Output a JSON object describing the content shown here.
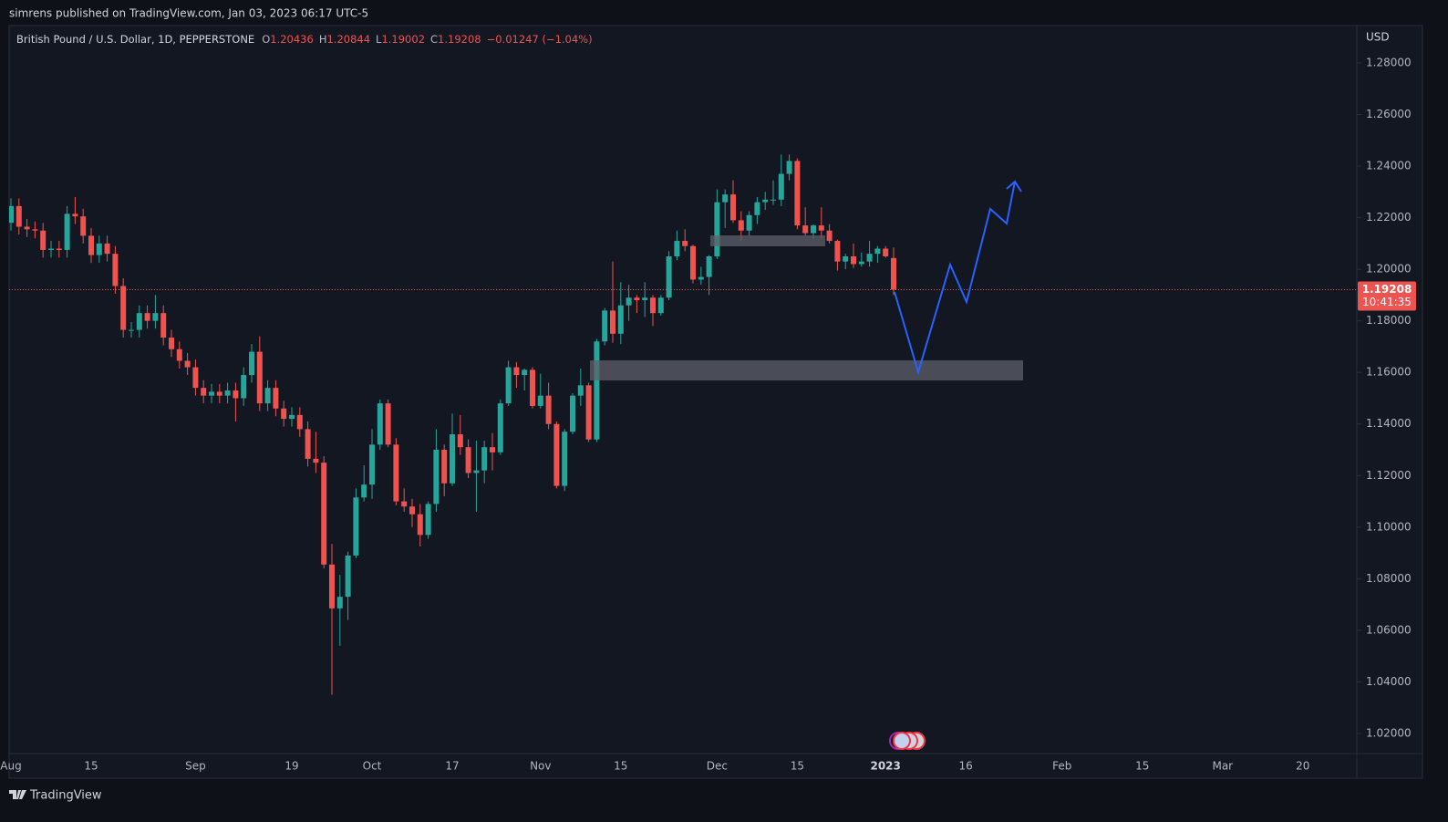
{
  "header": {
    "publisher": "simrens published on TradingView.com, Jan 03, 2023 06:17 UTC-5"
  },
  "chart_data": {
    "type": "candlestick",
    "title": "British Pound / U.S. Dollar, 1D, PEPPERSTONE",
    "legend_labels": {
      "open": "O",
      "high": "H",
      "low": "L",
      "close": "C"
    },
    "change": "−0.01247 (−1.04%)",
    "currency": "USD",
    "last_price_countdown": "10:41:35",
    "up_color": "#26a69a",
    "down_color": "#ef5350",
    "grid": false,
    "ylim": [
      1.0122,
      1.2945
    ],
    "yticks": [
      {
        "value": 1.02,
        "label": "1.02000"
      },
      {
        "value": 1.04,
        "label": "1.04000"
      },
      {
        "value": 1.06,
        "label": "1.06000"
      },
      {
        "value": 1.08,
        "label": "1.08000"
      },
      {
        "value": 1.1,
        "label": "1.10000"
      },
      {
        "value": 1.12,
        "label": "1.12000"
      },
      {
        "value": 1.14,
        "label": "1.14000"
      },
      {
        "value": 1.16,
        "label": "1.16000"
      },
      {
        "value": 1.18,
        "label": "1.18000"
      },
      {
        "value": 1.2,
        "label": "1.20000"
      },
      {
        "value": 1.22,
        "label": "1.22000"
      },
      {
        "value": 1.24,
        "label": "1.24000"
      },
      {
        "value": 1.26,
        "label": "1.26000"
      },
      {
        "value": 1.28,
        "label": "1.28000"
      }
    ],
    "categories": [
      "Aug",
      null,
      null,
      null,
      null,
      null,
      null,
      null,
      null,
      null,
      "15",
      null,
      null,
      null,
      null,
      null,
      null,
      null,
      null,
      null,
      null,
      null,
      null,
      "Sep",
      null,
      null,
      null,
      null,
      null,
      null,
      null,
      null,
      null,
      null,
      null,
      "19",
      null,
      null,
      null,
      null,
      null,
      null,
      null,
      null,
      null,
      "Oct",
      null,
      null,
      null,
      null,
      null,
      null,
      null,
      null,
      null,
      "17",
      null,
      null,
      null,
      null,
      null,
      null,
      null,
      null,
      null,
      null,
      "Nov",
      null,
      null,
      null,
      null,
      null,
      null,
      null,
      null,
      null,
      "15",
      null,
      null,
      null,
      null,
      null,
      null,
      null,
      null,
      null,
      null,
      null,
      "Dec",
      null,
      null,
      null,
      null,
      null,
      null,
      null,
      null,
      null,
      "15",
      null,
      null,
      null,
      null,
      null,
      null,
      null,
      null,
      null,
      null,
      "2023",
      null,
      null,
      null,
      null,
      null,
      null,
      null,
      null,
      null,
      "16",
      null,
      null,
      null,
      null,
      null,
      null,
      null,
      null,
      null,
      null,
      null,
      "Feb",
      null,
      null,
      null,
      null,
      null,
      null,
      null,
      null,
      null,
      "15",
      null,
      null,
      null,
      null,
      null,
      null,
      null,
      null,
      null,
      "Mar",
      null,
      null,
      null,
      null,
      null,
      null,
      null,
      null,
      null,
      "20",
      null,
      null,
      null,
      null,
      null,
      null
    ],
    "open": [
      1.218,
      1.2245,
      1.2165,
      1.2155,
      1.215,
      1.2075,
      1.208,
      1.2075,
      1.2215,
      1.2205,
      1.213,
      1.2055,
      1.21,
      1.206,
      1.1935,
      1.1765,
      1.1765,
      1.183,
      1.18,
      1.183,
      1.1735,
      1.169,
      1.1645,
      1.162,
      1.154,
      1.151,
      1.1525,
      1.151,
      1.153,
      1.15,
      1.159,
      1.168,
      1.148,
      1.154,
      1.146,
      1.142,
      1.1435,
      1.138,
      1.1265,
      1.125,
      1.0855,
      1.0685,
      1.073,
      1.089,
      1.1115,
      1.1165,
      1.132,
      1.148,
      1.132,
      1.11,
      1.108,
      1.105,
      1.097,
      1.109,
      1.13,
      1.117,
      1.136,
      1.131,
      1.121,
      1.122,
      1.131,
      1.129,
      1.148,
      1.162,
      1.159,
      1.161,
      1.147,
      1.151,
      1.14,
      1.116,
      1.137,
      1.151,
      1.155,
      1.134,
      1.172,
      1.184,
      1.175,
      1.186,
      1.189,
      1.188,
      1.189,
      1.183,
      1.189,
      1.205,
      1.211,
      1.209,
      1.196,
      1.197,
      1.205,
      1.226,
      1.229,
      1.219,
      1.215,
      1.221,
      1.226,
      1.227,
      1.227,
      1.237,
      1.242,
      1.217,
      1.214,
      1.217,
      1.215,
      1.211,
      1.203,
      1.205,
      1.202,
      1.203,
      1.206,
      1.208,
      1.20436,
      null,
      null,
      null,
      null,
      null,
      null,
      null,
      null,
      null,
      null,
      null,
      null,
      null,
      null,
      null,
      null,
      null,
      null,
      null,
      null,
      null,
      null,
      null,
      null,
      null,
      null,
      null,
      null,
      null,
      null,
      null,
      null,
      null,
      null,
      null,
      null,
      null,
      null,
      null,
      null,
      null,
      null,
      null,
      null,
      null,
      null,
      null,
      null,
      null,
      null,
      null,
      null,
      null,
      null,
      null,
      null,
      null
    ],
    "high": [
      1.2275,
      1.2275,
      1.2195,
      1.2185,
      1.218,
      1.211,
      1.211,
      1.2245,
      1.228,
      1.2235,
      1.216,
      1.213,
      1.213,
      1.209,
      1.1965,
      1.1795,
      1.186,
      1.186,
      1.19,
      1.186,
      1.1765,
      1.172,
      1.1675,
      1.165,
      1.157,
      1.1555,
      1.1555,
      1.156,
      1.156,
      1.162,
      1.171,
      1.174,
      1.157,
      1.157,
      1.149,
      1.1465,
      1.1465,
      1.141,
      1.137,
      1.1275,
      1.0935,
      1.0815,
      1.0905,
      1.115,
      1.124,
      1.138,
      1.1495,
      1.1495,
      1.1345,
      1.115,
      1.111,
      1.109,
      1.11,
      1.138,
      1.132,
      1.144,
      1.1435,
      1.134,
      1.1335,
      1.1335,
      1.1365,
      1.1495,
      1.1645,
      1.164,
      1.1615,
      1.162,
      1.1595,
      1.156,
      1.141,
      1.138,
      1.152,
      1.1615,
      1.156,
      1.173,
      1.185,
      1.203,
      1.195,
      1.194,
      1.19,
      1.195,
      1.19,
      1.19,
      1.207,
      1.215,
      1.2155,
      1.2095,
      1.201,
      1.2055,
      1.231,
      1.231,
      1.2345,
      1.2225,
      1.2225,
      1.228,
      1.23,
      1.2345,
      1.2445,
      1.2445,
      1.243,
      1.224,
      1.2175,
      1.224,
      1.2175,
      1.2115,
      1.206,
      1.21,
      1.2065,
      1.211,
      1.209,
      1.209,
      1.20844,
      null,
      null,
      null,
      null,
      null,
      null,
      null,
      null,
      null,
      null,
      null,
      null,
      null,
      null,
      null,
      null,
      null,
      null,
      null,
      null,
      null,
      null,
      null,
      null,
      null,
      null,
      null,
      null,
      null,
      null,
      null,
      null,
      null,
      null,
      null,
      null,
      null,
      null,
      null,
      null,
      null,
      null,
      null,
      null,
      null,
      null,
      null,
      null,
      null,
      null,
      null,
      null,
      null,
      null,
      null,
      null,
      null
    ],
    "low": [
      1.215,
      1.2135,
      1.2125,
      1.212,
      1.2045,
      1.2045,
      1.2045,
      1.2045,
      1.2175,
      1.21,
      1.2025,
      1.2025,
      1.203,
      1.1905,
      1.1735,
      1.1735,
      1.1735,
      1.177,
      1.177,
      1.1705,
      1.166,
      1.1615,
      1.159,
      1.151,
      1.148,
      1.148,
      1.148,
      1.148,
      1.141,
      1.147,
      1.156,
      1.145,
      1.145,
      1.143,
      1.139,
      1.139,
      1.135,
      1.1235,
      1.121,
      1.084,
      1.035,
      1.054,
      1.064,
      1.088,
      1.11,
      1.111,
      1.13,
      1.131,
      1.1085,
      1.106,
      1.1,
      1.0925,
      1.0955,
      1.106,
      1.112,
      1.116,
      1.128,
      1.119,
      1.106,
      1.117,
      1.122,
      1.128,
      1.147,
      1.154,
      1.153,
      1.146,
      1.146,
      1.138,
      1.115,
      1.114,
      1.136,
      1.147,
      1.133,
      1.133,
      1.1705,
      1.1715,
      1.171,
      1.18,
      1.183,
      1.1815,
      1.178,
      1.182,
      1.188,
      1.2035,
      1.207,
      1.1945,
      1.194,
      1.19,
      1.204,
      1.216,
      1.218,
      1.211,
      1.213,
      1.2175,
      1.223,
      1.225,
      1.2245,
      1.2345,
      1.2155,
      1.213,
      1.212,
      1.212,
      1.21,
      1.1995,
      1.2,
      1.2005,
      1.201,
      1.201,
      1.2025,
      1.2045,
      1.19002,
      null,
      null,
      null,
      null,
      null,
      null,
      null,
      null,
      null,
      null,
      null,
      null,
      null,
      null,
      null,
      null,
      null,
      null,
      null,
      null,
      null,
      null,
      null,
      null,
      null,
      null,
      null,
      null,
      null,
      null,
      null,
      null,
      null,
      null,
      null,
      null,
      null,
      null,
      null,
      null,
      null,
      null,
      null,
      null,
      null,
      null,
      null,
      null,
      null,
      null,
      null,
      null,
      null,
      null,
      null,
      null,
      null
    ],
    "close": [
      1.2245,
      1.2165,
      1.2155,
      1.215,
      1.2075,
      1.208,
      1.2075,
      1.2215,
      1.2205,
      1.213,
      1.2055,
      1.21,
      1.206,
      1.1935,
      1.1765,
      1.1765,
      1.183,
      1.18,
      1.183,
      1.1735,
      1.169,
      1.1645,
      1.162,
      1.154,
      1.151,
      1.1525,
      1.151,
      1.153,
      1.15,
      1.159,
      1.168,
      1.148,
      1.154,
      1.146,
      1.142,
      1.1435,
      1.138,
      1.1265,
      1.125,
      1.0855,
      1.0685,
      1.073,
      1.089,
      1.1115,
      1.1165,
      1.132,
      1.148,
      1.132,
      1.11,
      1.108,
      1.105,
      1.097,
      1.109,
      1.13,
      1.117,
      1.136,
      1.131,
      1.121,
      1.122,
      1.131,
      1.129,
      1.148,
      1.162,
      1.159,
      1.161,
      1.147,
      1.151,
      1.14,
      1.116,
      1.137,
      1.151,
      1.155,
      1.134,
      1.172,
      1.184,
      1.175,
      1.186,
      1.189,
      1.188,
      1.189,
      1.183,
      1.189,
      1.205,
      1.211,
      1.209,
      1.196,
      1.197,
      1.205,
      1.226,
      1.229,
      1.219,
      1.215,
      1.221,
      1.226,
      1.227,
      1.227,
      1.237,
      1.242,
      1.217,
      1.214,
      1.217,
      1.215,
      1.211,
      1.203,
      1.205,
      1.202,
      1.203,
      1.206,
      1.208,
      1.205,
      1.19208,
      null,
      null,
      null,
      null,
      null,
      null,
      null,
      null,
      null,
      null,
      null,
      null,
      null,
      null,
      null,
      null,
      null,
      null,
      null,
      null,
      null,
      null,
      null,
      null,
      null,
      null,
      null,
      null,
      null,
      null,
      null,
      null,
      null,
      null,
      null,
      null,
      null,
      null,
      null,
      null,
      null,
      null,
      null,
      null,
      null,
      null,
      null,
      null,
      null,
      null,
      null,
      null,
      null,
      null,
      null,
      null,
      null
    ]
  },
  "footer": {
    "brand": "TradingView"
  }
}
